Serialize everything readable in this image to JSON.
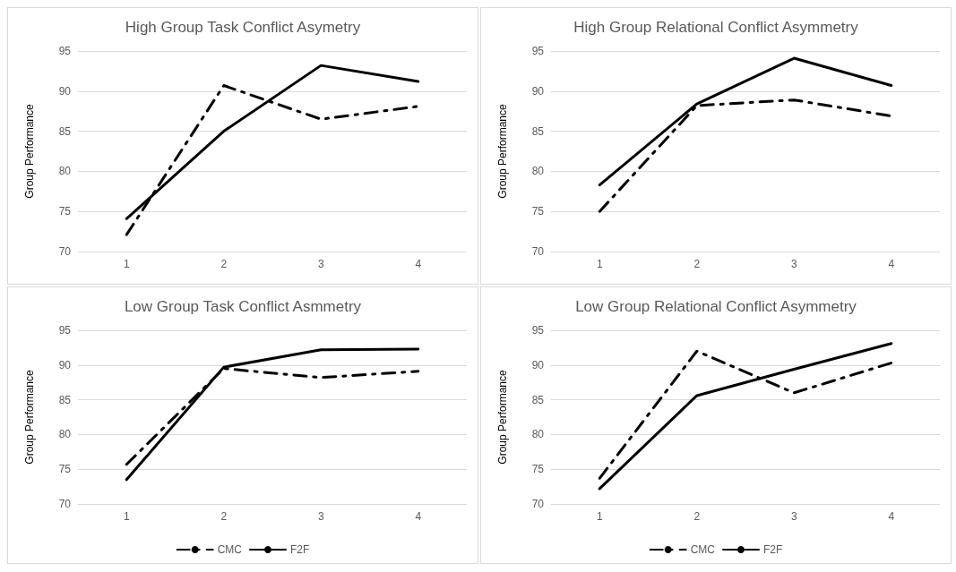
{
  "chart_data": [
    {
      "type": "line",
      "title": "High Group Task Conflict Asymetry",
      "ylabel": "Group Performance",
      "categories": [
        "1",
        "2",
        "3",
        "4"
      ],
      "ylim": [
        70,
        95
      ],
      "yticks": [
        70,
        75,
        80,
        85,
        90,
        95
      ],
      "grid": "y",
      "legend": false,
      "marker": "none",
      "series": [
        {
          "color": "#000000",
          "line_style": "dashed",
          "values": [
            72.1,
            90.7,
            86.5,
            88.1
          ]
        },
        {
          "color": "#000000",
          "line_style": "solid",
          "values": [
            74.1,
            85.0,
            93.2,
            91.2
          ]
        }
      ]
    },
    {
      "type": "line",
      "title": "High Group Relational Conflict Asymmetry",
      "ylabel": "Group Performance",
      "categories": [
        "1",
        "2",
        "3",
        "4"
      ],
      "ylim": [
        70,
        95
      ],
      "yticks": [
        70,
        75,
        80,
        85,
        90,
        95
      ],
      "grid": "y",
      "legend": false,
      "marker": "none",
      "series": [
        {
          "color": "#000000",
          "line_style": "dashed",
          "values": [
            75.0,
            88.2,
            88.9,
            86.9
          ]
        },
        {
          "color": "#000000",
          "line_style": "solid",
          "values": [
            78.3,
            88.4,
            94.1,
            90.7
          ]
        }
      ]
    },
    {
      "type": "line",
      "title": "Low Group Task Conflict Asmmetry",
      "ylabel": "Group Performance",
      "categories": [
        "1",
        "2",
        "3",
        "4"
      ],
      "ylim": [
        70,
        95
      ],
      "yticks": [
        70,
        75,
        80,
        85,
        90,
        95
      ],
      "grid": "y",
      "legend": "bottom",
      "marker": "none",
      "series": [
        {
          "name": "CMC",
          "color": "#000000",
          "line_style": "dashed",
          "values": [
            75.7,
            89.5,
            88.2,
            89.1
          ]
        },
        {
          "name": "F2F",
          "color": "#000000",
          "line_style": "solid",
          "values": [
            73.5,
            89.7,
            92.2,
            92.3
          ]
        }
      ]
    },
    {
      "type": "line",
      "title": "Low Group Relational Conflict Asymmetry",
      "ylabel": "Group Performance",
      "categories": [
        "1",
        "2",
        "3",
        "4"
      ],
      "ylim": [
        70,
        95
      ],
      "yticks": [
        70,
        75,
        80,
        85,
        90,
        95
      ],
      "grid": "y",
      "legend": "bottom",
      "marker": "none",
      "series": [
        {
          "name": "CMC",
          "color": "#000000",
          "line_style": "dashed",
          "values": [
            73.7,
            92.0,
            86.0,
            90.3
          ]
        },
        {
          "name": "F2F",
          "color": "#000000",
          "line_style": "solid",
          "values": [
            72.2,
            85.6,
            89.4,
            93.1
          ]
        }
      ]
    }
  ]
}
